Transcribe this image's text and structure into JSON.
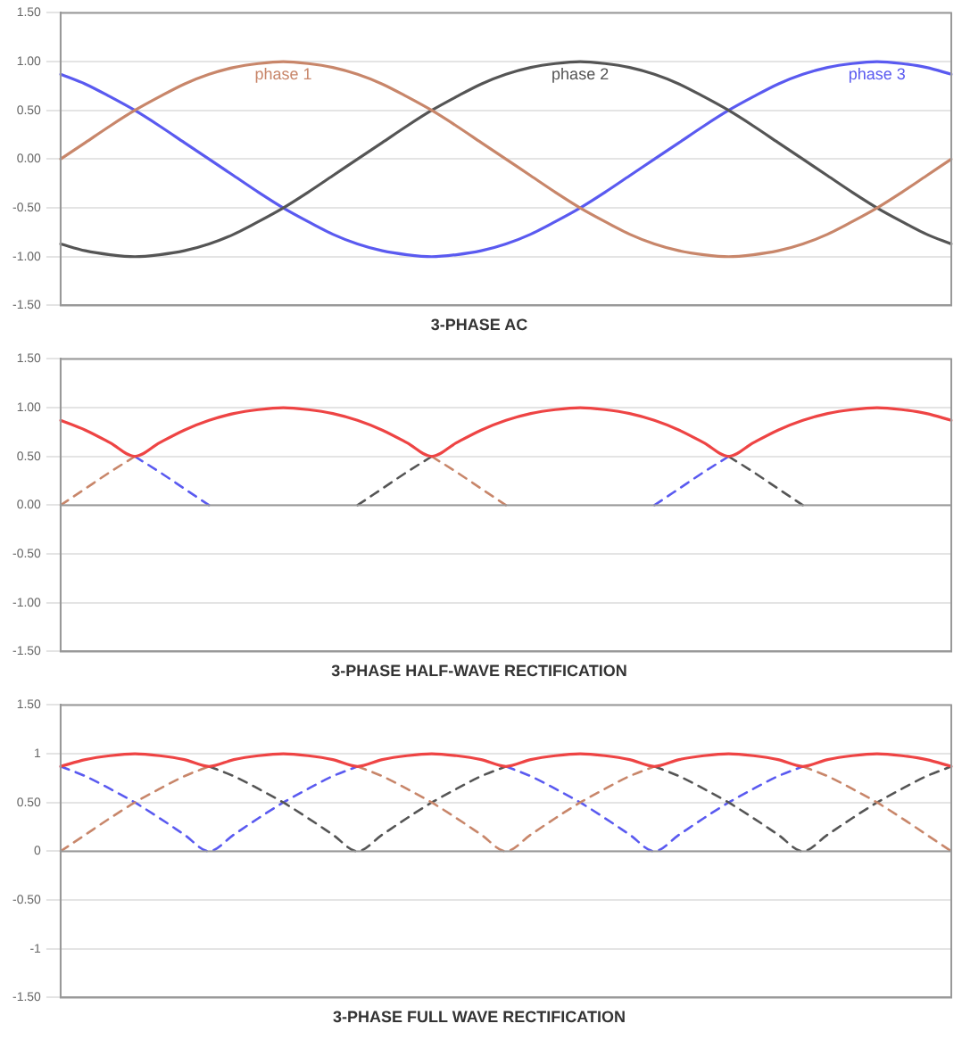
{
  "chart_data": [
    {
      "type": "line",
      "title": "3-PHASE AC",
      "categories": [
        null,
        null,
        null,
        null,
        null,
        null,
        null,
        null,
        null,
        null,
        null,
        null,
        null,
        null,
        null,
        null,
        null,
        null,
        null,
        null,
        null,
        null,
        null,
        null,
        null,
        null,
        null,
        null,
        null,
        null,
        null,
        null,
        null,
        null,
        null,
        null,
        null
      ],
      "ylim": [
        -1.5,
        1.5
      ],
      "yticks": [
        {
          "value": 1.5,
          "label": "1.50"
        },
        {
          "value": 1,
          "label": "1.00"
        },
        {
          "value": 0.5,
          "label": "0.50"
        },
        {
          "value": 0,
          "label": "0.00"
        },
        {
          "value": -0.5,
          "label": "-0.50"
        },
        {
          "value": -1,
          "label": "-1.00"
        },
        {
          "value": -1.5,
          "label": "-1.50"
        }
      ],
      "grid": "y",
      "tick_labels": "y",
      "marker": "none",
      "line_style": "solid",
      "series": [
        {
          "name": "phase 1",
          "color": "#c8866a",
          "values": [
            0,
            0.17,
            0.34,
            0.5,
            0.64,
            0.77,
            0.87,
            0.94,
            0.98,
            1,
            0.98,
            0.94,
            0.87,
            0.77,
            0.64,
            0.5,
            0.34,
            0.17,
            0,
            -0.17,
            -0.34,
            -0.5,
            -0.64,
            -0.77,
            -0.87,
            -0.94,
            -0.98,
            -1,
            -0.98,
            -0.94,
            -0.87,
            -0.77,
            -0.64,
            -0.5,
            -0.34,
            -0.17,
            0
          ]
        },
        {
          "name": "phase 2",
          "color": "#555555",
          "values": [
            -0.87,
            -0.94,
            -0.98,
            -1,
            -0.98,
            -0.94,
            -0.87,
            -0.77,
            -0.64,
            -0.5,
            -0.34,
            -0.17,
            0,
            0.17,
            0.34,
            0.5,
            0.64,
            0.77,
            0.87,
            0.94,
            0.98,
            1,
            0.98,
            0.94,
            0.87,
            0.77,
            0.64,
            0.5,
            0.34,
            0.17,
            0,
            -0.17,
            -0.34,
            -0.5,
            -0.64,
            -0.77,
            -0.87
          ]
        },
        {
          "name": "phase 3",
          "color": "#5a5af0",
          "values": [
            0.87,
            0.77,
            0.64,
            0.5,
            0.34,
            0.17,
            0,
            -0.17,
            -0.34,
            -0.5,
            -0.64,
            -0.77,
            -0.87,
            -0.94,
            -0.98,
            -1,
            -0.98,
            -0.94,
            -0.87,
            -0.77,
            -0.64,
            -0.5,
            -0.34,
            -0.17,
            0,
            0.17,
            0.34,
            0.5,
            0.64,
            0.77,
            0.87,
            0.94,
            0.98,
            1,
            0.98,
            0.94,
            0.87
          ]
        }
      ]
    },
    {
      "type": "line",
      "title": "3-PHASE HALF-WAVE RECTIFICATION",
      "categories": [
        null,
        null,
        null,
        null,
        null,
        null,
        null,
        null,
        null,
        null,
        null,
        null,
        null,
        null,
        null,
        null,
        null,
        null,
        null,
        null,
        null,
        null,
        null,
        null,
        null,
        null,
        null,
        null,
        null,
        null,
        null,
        null,
        null,
        null,
        null,
        null,
        null
      ],
      "ylim": [
        -1.5,
        1.5
      ],
      "yticks": [
        {
          "value": 1.5,
          "label": "1.50"
        },
        {
          "value": 1,
          "label": "1.00"
        },
        {
          "value": 0.5,
          "label": "0.50"
        },
        {
          "value": 0,
          "label": "0.00"
        },
        {
          "value": -0.5,
          "label": "-0.50"
        },
        {
          "value": -1,
          "label": "-1.00"
        },
        {
          "value": -1.5,
          "label": "-1.50"
        }
      ],
      "grid": "y",
      "tick_labels": "y",
      "marker": "none",
      "ref_lines": [
        {
          "axis": "y",
          "value": 0,
          "color": "#999999"
        }
      ],
      "series": [
        {
          "color": "#ee4444",
          "line_style": "solid",
          "values": [
            0.87,
            0.77,
            0.64,
            0.5,
            0.64,
            0.77,
            0.87,
            0.94,
            0.98,
            1,
            0.98,
            0.94,
            0.87,
            0.77,
            0.64,
            0.5,
            0.64,
            0.77,
            0.87,
            0.94,
            0.98,
            1,
            0.98,
            0.94,
            0.87,
            0.77,
            0.64,
            0.5,
            0.64,
            0.77,
            0.87,
            0.94,
            0.98,
            1,
            0.98,
            0.94,
            0.87
          ]
        },
        {
          "color": "#c8866a",
          "line_style": "dashed",
          "values": [
            0,
            0.17,
            0.34,
            0.5,
            null,
            null,
            null,
            null,
            null,
            null,
            null,
            null,
            null,
            null,
            null,
            0.5,
            0.34,
            0.17,
            0,
            null,
            null,
            null,
            null,
            null,
            null,
            null,
            null,
            null,
            null,
            null,
            null,
            null,
            null,
            null,
            null,
            null,
            null
          ]
        },
        {
          "color": "#555555",
          "line_style": "dashed",
          "values": [
            null,
            null,
            null,
            null,
            null,
            null,
            null,
            null,
            null,
            null,
            null,
            null,
            0,
            0.17,
            0.34,
            0.5,
            null,
            null,
            null,
            null,
            null,
            null,
            null,
            null,
            null,
            null,
            null,
            0.5,
            0.34,
            0.17,
            0,
            null,
            null,
            null,
            null,
            null,
            null
          ]
        },
        {
          "color": "#5a5af0",
          "line_style": "dashed",
          "values": [
            null,
            null,
            null,
            0.5,
            0.34,
            0.17,
            0,
            null,
            null,
            null,
            null,
            null,
            null,
            null,
            null,
            null,
            null,
            null,
            null,
            null,
            null,
            null,
            null,
            null,
            0,
            0.17,
            0.34,
            0.5,
            null,
            null,
            null,
            null,
            null,
            null,
            null,
            null,
            null
          ]
        }
      ]
    },
    {
      "type": "line",
      "title": "3-PHASE FULL WAVE RECTIFICATION",
      "categories": [
        null,
        null,
        null,
        null,
        null,
        null,
        null,
        null,
        null,
        null,
        null,
        null,
        null,
        null,
        null,
        null,
        null,
        null,
        null,
        null,
        null,
        null,
        null,
        null,
        null,
        null,
        null,
        null,
        null,
        null,
        null,
        null,
        null,
        null,
        null,
        null,
        null
      ],
      "ylim": [
        -1.5,
        1.5
      ],
      "yticks": [
        {
          "value": 1.5,
          "label": "1.50"
        },
        1,
        {
          "value": 0.5,
          "label": "0.50"
        },
        0,
        {
          "value": -0.5,
          "label": "-0.50"
        },
        -1,
        {
          "value": -1.5,
          "label": "-1.50"
        }
      ],
      "grid": "y",
      "tick_labels": "y",
      "marker": "none",
      "ref_lines": [
        {
          "axis": "y",
          "value": 0,
          "color": "#999999"
        }
      ],
      "series": [
        {
          "color": "#ee4444",
          "line_style": "solid",
          "values": [
            0.87,
            0.94,
            0.98,
            1,
            0.98,
            0.94,
            0.87,
            0.94,
            0.98,
            1,
            0.98,
            0.94,
            0.87,
            0.94,
            0.98,
            1,
            0.98,
            0.94,
            0.87,
            0.94,
            0.98,
            1,
            0.98,
            0.94,
            0.87,
            0.94,
            0.98,
            1,
            0.98,
            0.94,
            0.87,
            0.94,
            0.98,
            1,
            0.98,
            0.94,
            0.87
          ]
        },
        {
          "color": "#c8866a",
          "line_style": "dashed",
          "values": [
            0,
            0.17,
            0.34,
            0.5,
            0.64,
            0.77,
            0.87,
            null,
            null,
            null,
            null,
            null,
            0.87,
            0.77,
            0.64,
            0.5,
            0.34,
            0.17,
            0,
            0.17,
            0.34,
            0.5,
            0.64,
            0.77,
            0.87,
            null,
            null,
            null,
            null,
            null,
            0.87,
            0.77,
            0.64,
            0.5,
            0.34,
            0.17,
            0
          ]
        },
        {
          "color": "#555555",
          "line_style": "dashed",
          "values": [
            null,
            null,
            null,
            null,
            null,
            null,
            0.87,
            0.77,
            0.64,
            0.5,
            0.34,
            0.17,
            0,
            0.17,
            0.34,
            0.5,
            0.64,
            0.77,
            0.87,
            null,
            null,
            null,
            null,
            null,
            0.87,
            0.77,
            0.64,
            0.5,
            0.34,
            0.17,
            0,
            0.17,
            0.34,
            0.5,
            0.64,
            0.77,
            0.87
          ]
        },
        {
          "color": "#5a5af0",
          "line_style": "dashed",
          "values": [
            0.87,
            0.77,
            0.64,
            0.5,
            0.34,
            0.17,
            0,
            0.17,
            0.34,
            0.5,
            0.64,
            0.77,
            0.87,
            null,
            null,
            null,
            null,
            null,
            0.87,
            0.77,
            0.64,
            0.5,
            0.34,
            0.17,
            0,
            0.17,
            0.34,
            0.5,
            0.64,
            0.77,
            0.87,
            null,
            null,
            null,
            null,
            null,
            null
          ]
        }
      ]
    }
  ]
}
